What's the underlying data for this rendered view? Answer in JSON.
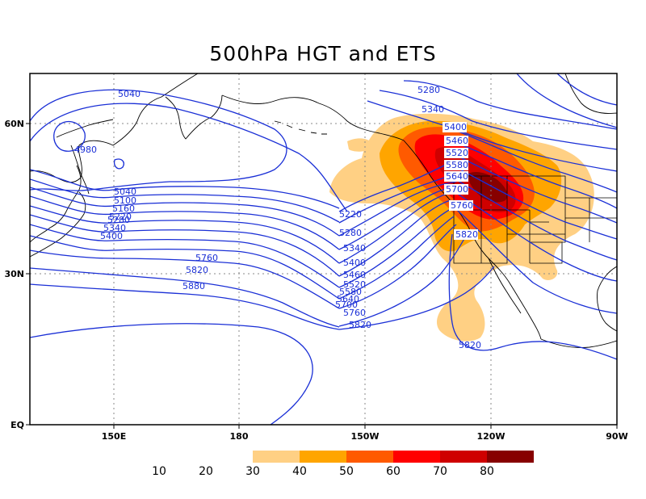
{
  "title": "500hPa HGT and ETS",
  "x_axis": {
    "ticks": [
      {
        "label": "150E",
        "lon": 150
      },
      {
        "label": "180",
        "lon": 180
      },
      {
        "label": "150W",
        "lon": 210
      },
      {
        "label": "120W",
        "lon": 240
      },
      {
        "label": "90W",
        "lon": 270
      }
    ]
  },
  "y_axis": {
    "ticks": [
      {
        "label": "EQ",
        "lat": 0
      },
      {
        "label": "30N",
        "lat": 30
      },
      {
        "label": "60N",
        "lat": 60
      }
    ]
  },
  "extent": {
    "lon_min": 130,
    "lon_max": 270,
    "lat_min": 0,
    "lat_max": 70
  },
  "contour_color": "#1a2fd6",
  "contour_labels": [
    "4980",
    "5040",
    "5040",
    "5100",
    "5160",
    "5220",
    "5280",
    "5340",
    "5400",
    "5220",
    "5280",
    "5340",
    "5400",
    "5460",
    "5520",
    "5580",
    "5640",
    "5700",
    "5760",
    "5820",
    "5760",
    "5820",
    "5880",
    "5280",
    "5340",
    "5400",
    "5460",
    "5520",
    "5580",
    "5640",
    "5700",
    "5760",
    "5820",
    "5820"
  ],
  "legend": {
    "labels": [
      "10",
      "20",
      "30",
      "40",
      "50",
      "60",
      "70",
      "80"
    ],
    "colors": [
      "#ffd084",
      "#ffa500",
      "#ff5a00",
      "#ff0000",
      "#cf0000",
      "#870000"
    ]
  }
}
